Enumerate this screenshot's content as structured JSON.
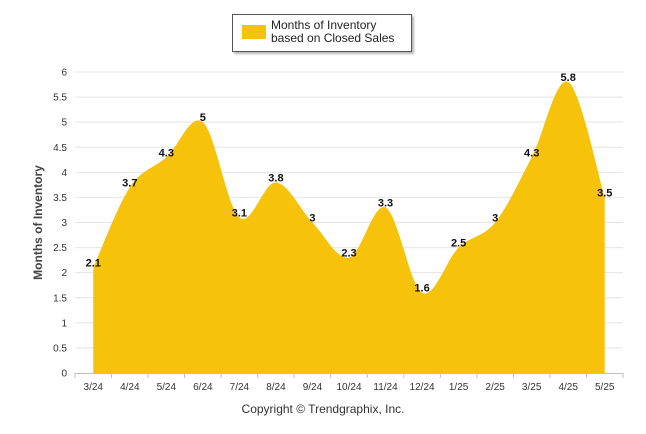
{
  "chart_data": {
    "type": "area",
    "categories": [
      "3/24",
      "4/24",
      "5/24",
      "6/24",
      "7/24",
      "8/24",
      "9/24",
      "10/24",
      "11/24",
      "12/24",
      "1/25",
      "2/25",
      "3/25",
      "4/25",
      "5/25"
    ],
    "series": [
      {
        "name": "Months of Inventory based on Closed Sales",
        "values": [
          2.1,
          3.7,
          4.3,
          5,
          3.1,
          3.8,
          3,
          2.3,
          3.3,
          1.6,
          2.5,
          3,
          4.3,
          5.8,
          3.5
        ]
      }
    ],
    "data_labels": [
      "2.1",
      "3.7",
      "4.3",
      "5",
      "3.1",
      "3.8",
      "3",
      "2.3",
      "3.3",
      "1.6",
      "2.5",
      "3",
      "4.3",
      "5.8",
      "3.5"
    ],
    "ylabel": "Months of Inventory",
    "ylim": [
      0,
      6
    ],
    "yticks": [
      "0",
      "0.5",
      "1",
      "1.5",
      "2",
      "2.5",
      "3",
      "3.5",
      "4",
      "4.5",
      "5",
      "5.5",
      "6"
    ],
    "grid": true,
    "smooth": true,
    "legend_position": "top-center",
    "fill_color": "#F6C20A",
    "grid_color": "#e4e4e4",
    "axis_color": "#c0c0c0",
    "text_color": "#333333"
  },
  "legend": {
    "label": "Months of Inventory based on Closed Sales"
  },
  "footer": {
    "copyright": "Copyright © Trendgraphix, Inc."
  }
}
